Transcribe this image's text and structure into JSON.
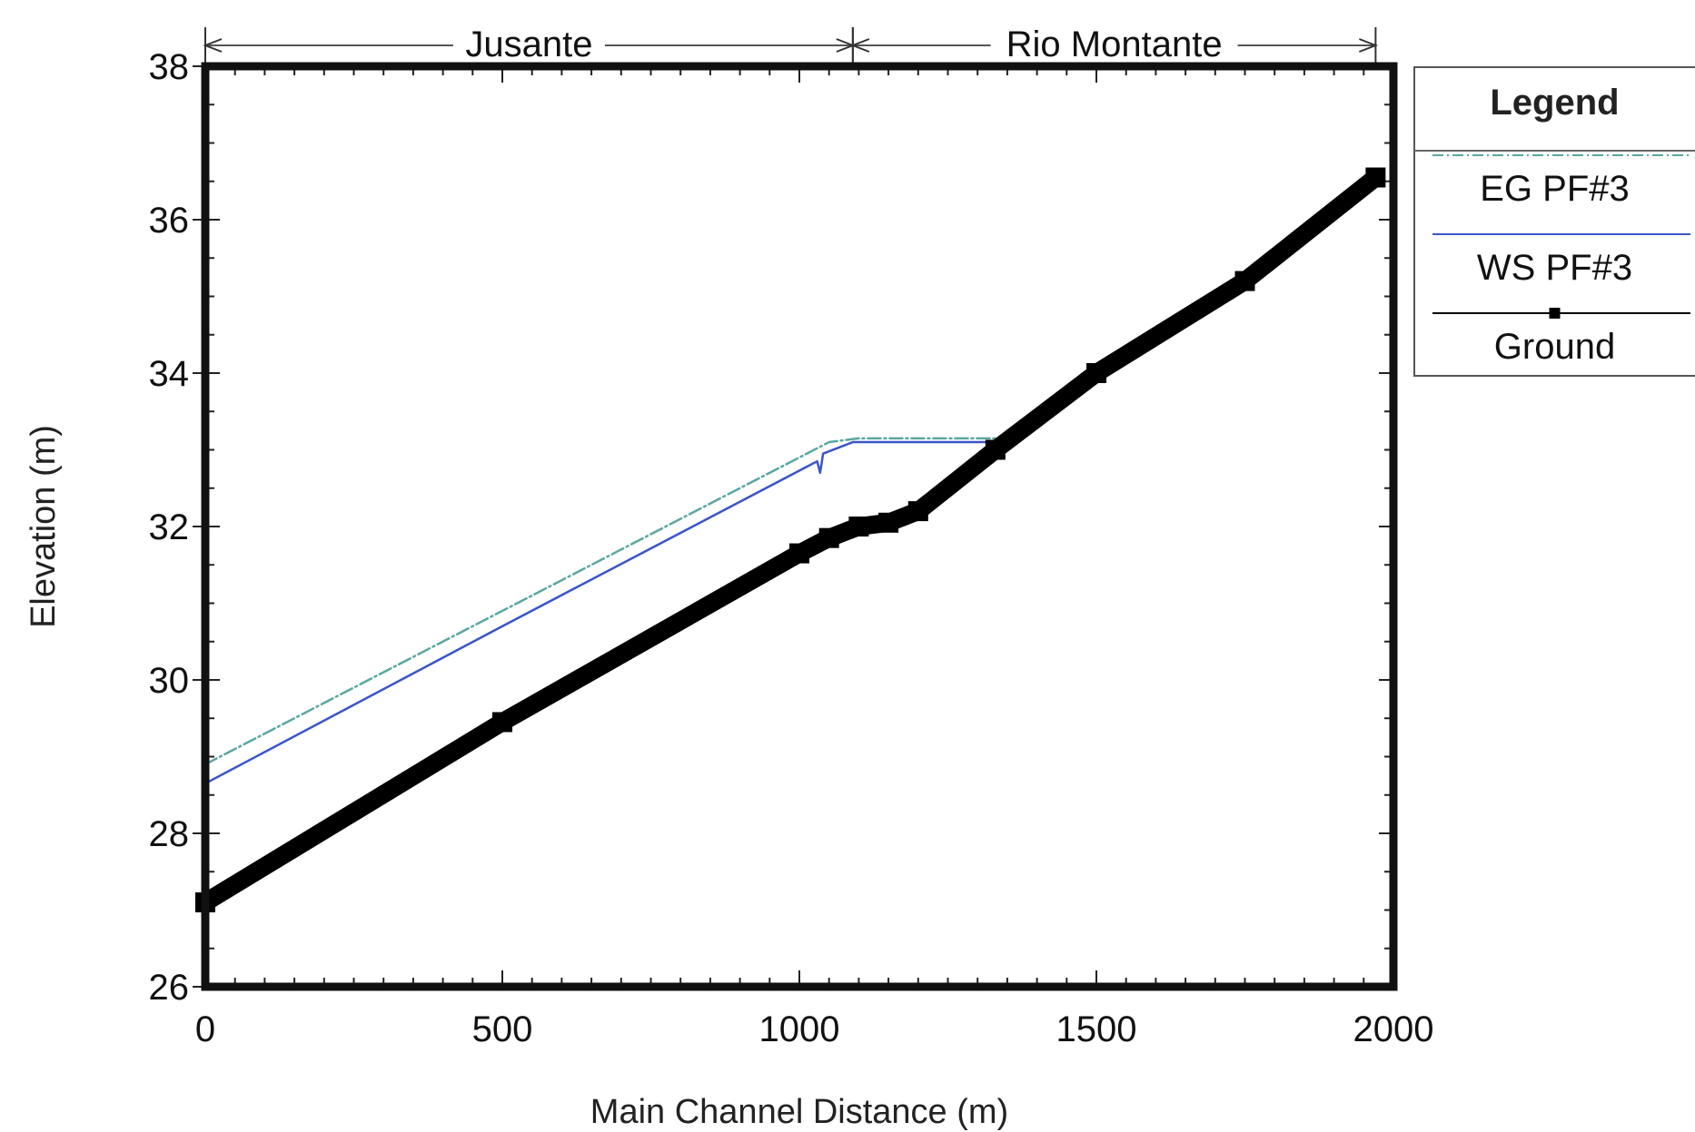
{
  "chart_data": {
    "type": "line",
    "title": "",
    "xlabel": "Main Channel Distance (m)",
    "ylabel": "Elevation (m)",
    "xlim": [
      0,
      2000
    ],
    "ylim": [
      26,
      38
    ],
    "xticks": [
      0,
      500,
      1000,
      1500,
      2000
    ],
    "yticks": [
      26,
      28,
      30,
      32,
      34,
      36,
      38
    ],
    "grid": false,
    "legend": {
      "title": "Legend",
      "placement": "right-top, outside plot"
    },
    "reaches": [
      {
        "name": "Jusante",
        "start": 0,
        "end": 1090
      },
      {
        "name": "Rio Montante",
        "start": 1090,
        "end": 1970
      }
    ],
    "series": [
      {
        "name": "EG PF#3",
        "color": "#5aa7a0",
        "style": "thin-dashdot",
        "x": [
          0,
          500,
          1050,
          1100,
          1330
        ],
        "y": [
          28.9,
          30.9,
          33.1,
          33.15,
          33.15
        ]
      },
      {
        "name": "WS PF#3",
        "color": "#3a55c8",
        "style": "thin-solid",
        "x": [
          0,
          500,
          1030,
          1035,
          1040,
          1090,
          1330
        ],
        "y": [
          28.65,
          30.7,
          32.85,
          32.7,
          32.95,
          33.1,
          33.1
        ]
      },
      {
        "name": "Ground",
        "color": "#000000",
        "style": "thick-solid-square-markers",
        "x": [
          0,
          500,
          1000,
          1050,
          1100,
          1150,
          1200,
          1330,
          1500,
          1750,
          1970
        ],
        "y": [
          27.1,
          29.45,
          31.65,
          31.85,
          32.0,
          32.05,
          32.2,
          33.0,
          34.0,
          35.2,
          36.55
        ]
      }
    ]
  }
}
